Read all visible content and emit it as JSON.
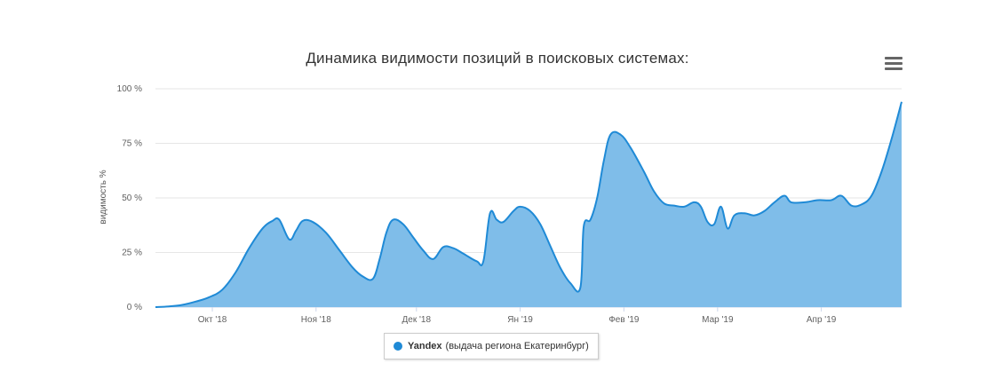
{
  "chart_data": {
    "type": "area",
    "title": "Динамика видимости позиций в поисковых системах:",
    "ylabel": "видимость %",
    "xlabel": "",
    "ylim": [
      0,
      100
    ],
    "y_ticks": [
      "0 %",
      "25 %",
      "50 %",
      "75 %",
      "100 %"
    ],
    "y_tick_values": [
      0,
      25,
      50,
      75,
      100
    ],
    "x_start": "2018-09-14",
    "x_end": "2019-04-25",
    "x_ticks": [
      {
        "label": "Окт '18",
        "date": "2018-10-01"
      },
      {
        "label": "Ноя '18",
        "date": "2018-11-01"
      },
      {
        "label": "Дек '18",
        "date": "2018-12-01"
      },
      {
        "label": "Ян '19",
        "date": "2019-01-01"
      },
      {
        "label": "Фев '19",
        "date": "2019-02-01"
      },
      {
        "label": "Мар '19",
        "date": "2019-03-01"
      },
      {
        "label": "Апр '19",
        "date": "2019-04-01"
      }
    ],
    "grid": true,
    "legend": "bottom",
    "series": [
      {
        "name": "Yandex",
        "color": "#1f8ad6",
        "fill": "#7fbde9",
        "points": [
          [
            "2018-09-14",
            0
          ],
          [
            "2018-09-18",
            0.3
          ],
          [
            "2018-09-22",
            1
          ],
          [
            "2018-09-26",
            2.5
          ],
          [
            "2018-09-30",
            4.5
          ],
          [
            "2018-10-04",
            8
          ],
          [
            "2018-10-08",
            16
          ],
          [
            "2018-10-12",
            27
          ],
          [
            "2018-10-16",
            36
          ],
          [
            "2018-10-19",
            39.5
          ],
          [
            "2018-10-21",
            40
          ],
          [
            "2018-10-24",
            31
          ],
          [
            "2018-10-26",
            35
          ],
          [
            "2018-10-28",
            39.5
          ],
          [
            "2018-10-31",
            39
          ],
          [
            "2018-11-04",
            34
          ],
          [
            "2018-11-08",
            26
          ],
          [
            "2018-11-12",
            18
          ],
          [
            "2018-11-15",
            14
          ],
          [
            "2018-11-18",
            13
          ],
          [
            "2018-11-20",
            22
          ],
          [
            "2018-11-22",
            34
          ],
          [
            "2018-11-24",
            40
          ],
          [
            "2018-11-27",
            38
          ],
          [
            "2018-11-30",
            32
          ],
          [
            "2018-12-03",
            26
          ],
          [
            "2018-12-06",
            22
          ],
          [
            "2018-12-09",
            27.5
          ],
          [
            "2018-12-12",
            27
          ],
          [
            "2018-12-15",
            24.5
          ],
          [
            "2018-12-19",
            21
          ],
          [
            "2018-12-21",
            21
          ],
          [
            "2018-12-23",
            43
          ],
          [
            "2018-12-25",
            40
          ],
          [
            "2018-12-27",
            39
          ],
          [
            "2018-12-30",
            44
          ],
          [
            "2019-01-01",
            46
          ],
          [
            "2019-01-04",
            44
          ],
          [
            "2019-01-07",
            38
          ],
          [
            "2019-01-10",
            28
          ],
          [
            "2019-01-13",
            18
          ],
          [
            "2019-01-16",
            11
          ],
          [
            "2019-01-19",
            9
          ],
          [
            "2019-01-20",
            37
          ],
          [
            "2019-01-22",
            40
          ],
          [
            "2019-01-24",
            50
          ],
          [
            "2019-01-26",
            67
          ],
          [
            "2019-01-28",
            79
          ],
          [
            "2019-01-31",
            79
          ],
          [
            "2019-02-03",
            73
          ],
          [
            "2019-02-07",
            62
          ],
          [
            "2019-02-10",
            53
          ],
          [
            "2019-02-13",
            47.5
          ],
          [
            "2019-02-16",
            46.5
          ],
          [
            "2019-02-19",
            46
          ],
          [
            "2019-02-22",
            48
          ],
          [
            "2019-02-24",
            46
          ],
          [
            "2019-02-26",
            39
          ],
          [
            "2019-02-28",
            38
          ],
          [
            "2019-03-02",
            46
          ],
          [
            "2019-03-04",
            36
          ],
          [
            "2019-03-06",
            42
          ],
          [
            "2019-03-09",
            43
          ],
          [
            "2019-03-12",
            42
          ],
          [
            "2019-03-15",
            44
          ],
          [
            "2019-03-18",
            48
          ],
          [
            "2019-03-21",
            51
          ],
          [
            "2019-03-23",
            48
          ],
          [
            "2019-03-27",
            48
          ],
          [
            "2019-03-31",
            49
          ],
          [
            "2019-04-04",
            49
          ],
          [
            "2019-04-07",
            51
          ],
          [
            "2019-04-10",
            46.5
          ],
          [
            "2019-04-13",
            47
          ],
          [
            "2019-04-16",
            51
          ],
          [
            "2019-04-19",
            62
          ],
          [
            "2019-04-22",
            77
          ],
          [
            "2019-04-25",
            94
          ]
        ]
      }
    ]
  },
  "legend": {
    "series_name": "Yandex",
    "series_note": "(выдача региона Екатеринбург)"
  }
}
